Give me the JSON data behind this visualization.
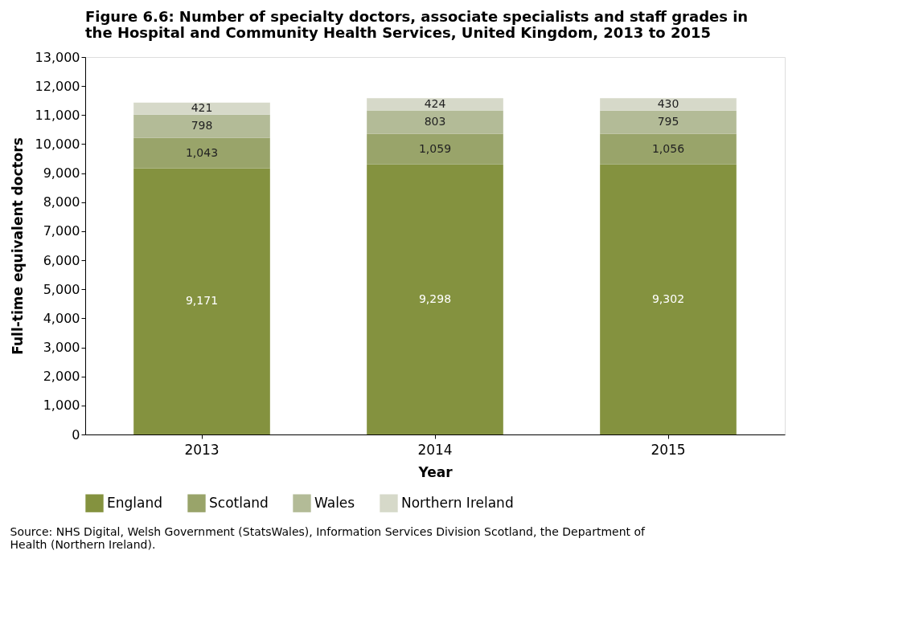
{
  "chart_data": {
    "type": "bar",
    "title": "Figure 6.6: Number of specialty doctors, associate specialists and staff grades in the Hospital and Community Health Services, United Kingdom, 2013 to 2015",
    "xlabel": "Year",
    "ylabel": "Full-time equivalent doctors",
    "categories": [
      "2013",
      "2014",
      "2015"
    ],
    "stacked": true,
    "legend": "bottom",
    "grid": false,
    "ylim": [
      0,
      13000
    ],
    "yticks": [
      {
        "value": 0,
        "label": "0"
      },
      {
        "value": 1000,
        "label": "1,000"
      },
      {
        "value": 2000,
        "label": "2,000"
      },
      {
        "value": 3000,
        "label": "3,000"
      },
      {
        "value": 4000,
        "label": "4,000"
      },
      {
        "value": 5000,
        "label": "5,000"
      },
      {
        "value": 6000,
        "label": "6,000"
      },
      {
        "value": 7000,
        "label": "7,000"
      },
      {
        "value": 8000,
        "label": "8,000"
      },
      {
        "value": 9000,
        "label": "9,000"
      },
      {
        "value": 10000,
        "label": "10,000"
      },
      {
        "value": 11000,
        "label": "11,000"
      },
      {
        "value": 12000,
        "label": "12,000"
      },
      {
        "value": 13000,
        "label": "13,000"
      }
    ],
    "series": [
      {
        "name": "England",
        "color": "#84923f",
        "values": [
          9171,
          9298,
          9302
        ],
        "value_labels": [
          "9,171",
          "9,298",
          "9,302"
        ]
      },
      {
        "name": "Scotland",
        "color": "#99a46a",
        "values": [
          1043,
          1059,
          1056
        ],
        "value_labels": [
          "1,043",
          "1,059",
          "1,056"
        ]
      },
      {
        "name": "Wales",
        "color": "#b3bb97",
        "values": [
          798,
          803,
          795
        ],
        "value_labels": [
          "798",
          "803",
          "795"
        ]
      },
      {
        "name": "Northern Ireland",
        "color": "#d6d9c9",
        "values": [
          421,
          424,
          430
        ],
        "value_labels": [
          "421",
          "424",
          "430"
        ]
      }
    ],
    "annotations": [
      "Source: NHS Digital, Welsh Government (StatsWales), Information Services Division Scotland, the Department of Health (Northern Ireland)."
    ]
  }
}
